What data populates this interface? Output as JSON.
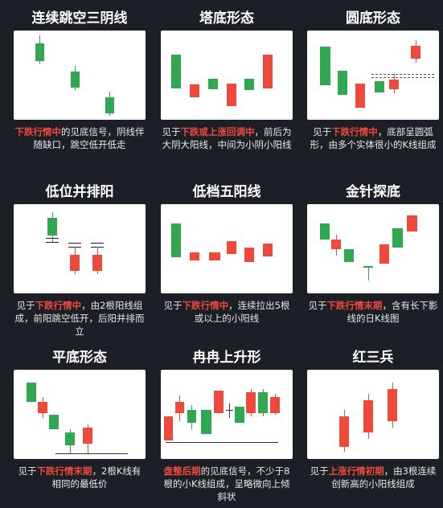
{
  "panels": [
    {
      "title": "连续跳空三阴线",
      "desc_hl": "下跌行情中",
      "desc_rest": "的见底信号，阴线伴随缺口，跳空低开低走"
    },
    {
      "title": "塔底形态",
      "desc_pre": "见于",
      "desc_hl": "下跌或上涨回调中",
      "desc_rest": "，前后为大阴大阳线，中间为小阴小阳线"
    },
    {
      "title": "圆底形态",
      "desc_pre": "见于",
      "desc_hl": "下跌行情中",
      "desc_rest": "，底部呈圆弧形，由多个实体很小的K线组成"
    },
    {
      "title": "低位并排阳",
      "desc_pre": "见于",
      "desc_hl": "下跌行情中",
      "desc_rest": "，由2根阳线组成，前阳跳空低开，后阳并排而立"
    },
    {
      "title": "低档五阳线",
      "desc_pre": "见于",
      "desc_hl": "下跌行情中",
      "desc_rest": "，连续拉出5根或以上的小阳线"
    },
    {
      "title": "金针探底",
      "desc_pre": "见于",
      "desc_hl": "下跌行情末期",
      "desc_rest": "，含有长下影线的日K线图"
    },
    {
      "title": "平底形态",
      "desc_pre": "见于",
      "desc_hl": "下跌行情末期",
      "desc_rest": "，2根K线有相同的最低价"
    },
    {
      "title": "冉冉上升形",
      "desc_pre": "",
      "desc_hl": "盘整后期",
      "desc_rest": "的见底信号，不少于8根的小K线组成，呈略微向上倾斜状"
    },
    {
      "title": "红三兵",
      "desc_pre": "见于",
      "desc_hl": "上涨行情初期",
      "desc_rest": "，由3根连续创新高的小阳线组成"
    }
  ],
  "colors": {
    "background": "#1c1f25",
    "bullish": "#ee4a3b",
    "bearish": "#2fa84f",
    "highlight": "#ef4a3b"
  }
}
